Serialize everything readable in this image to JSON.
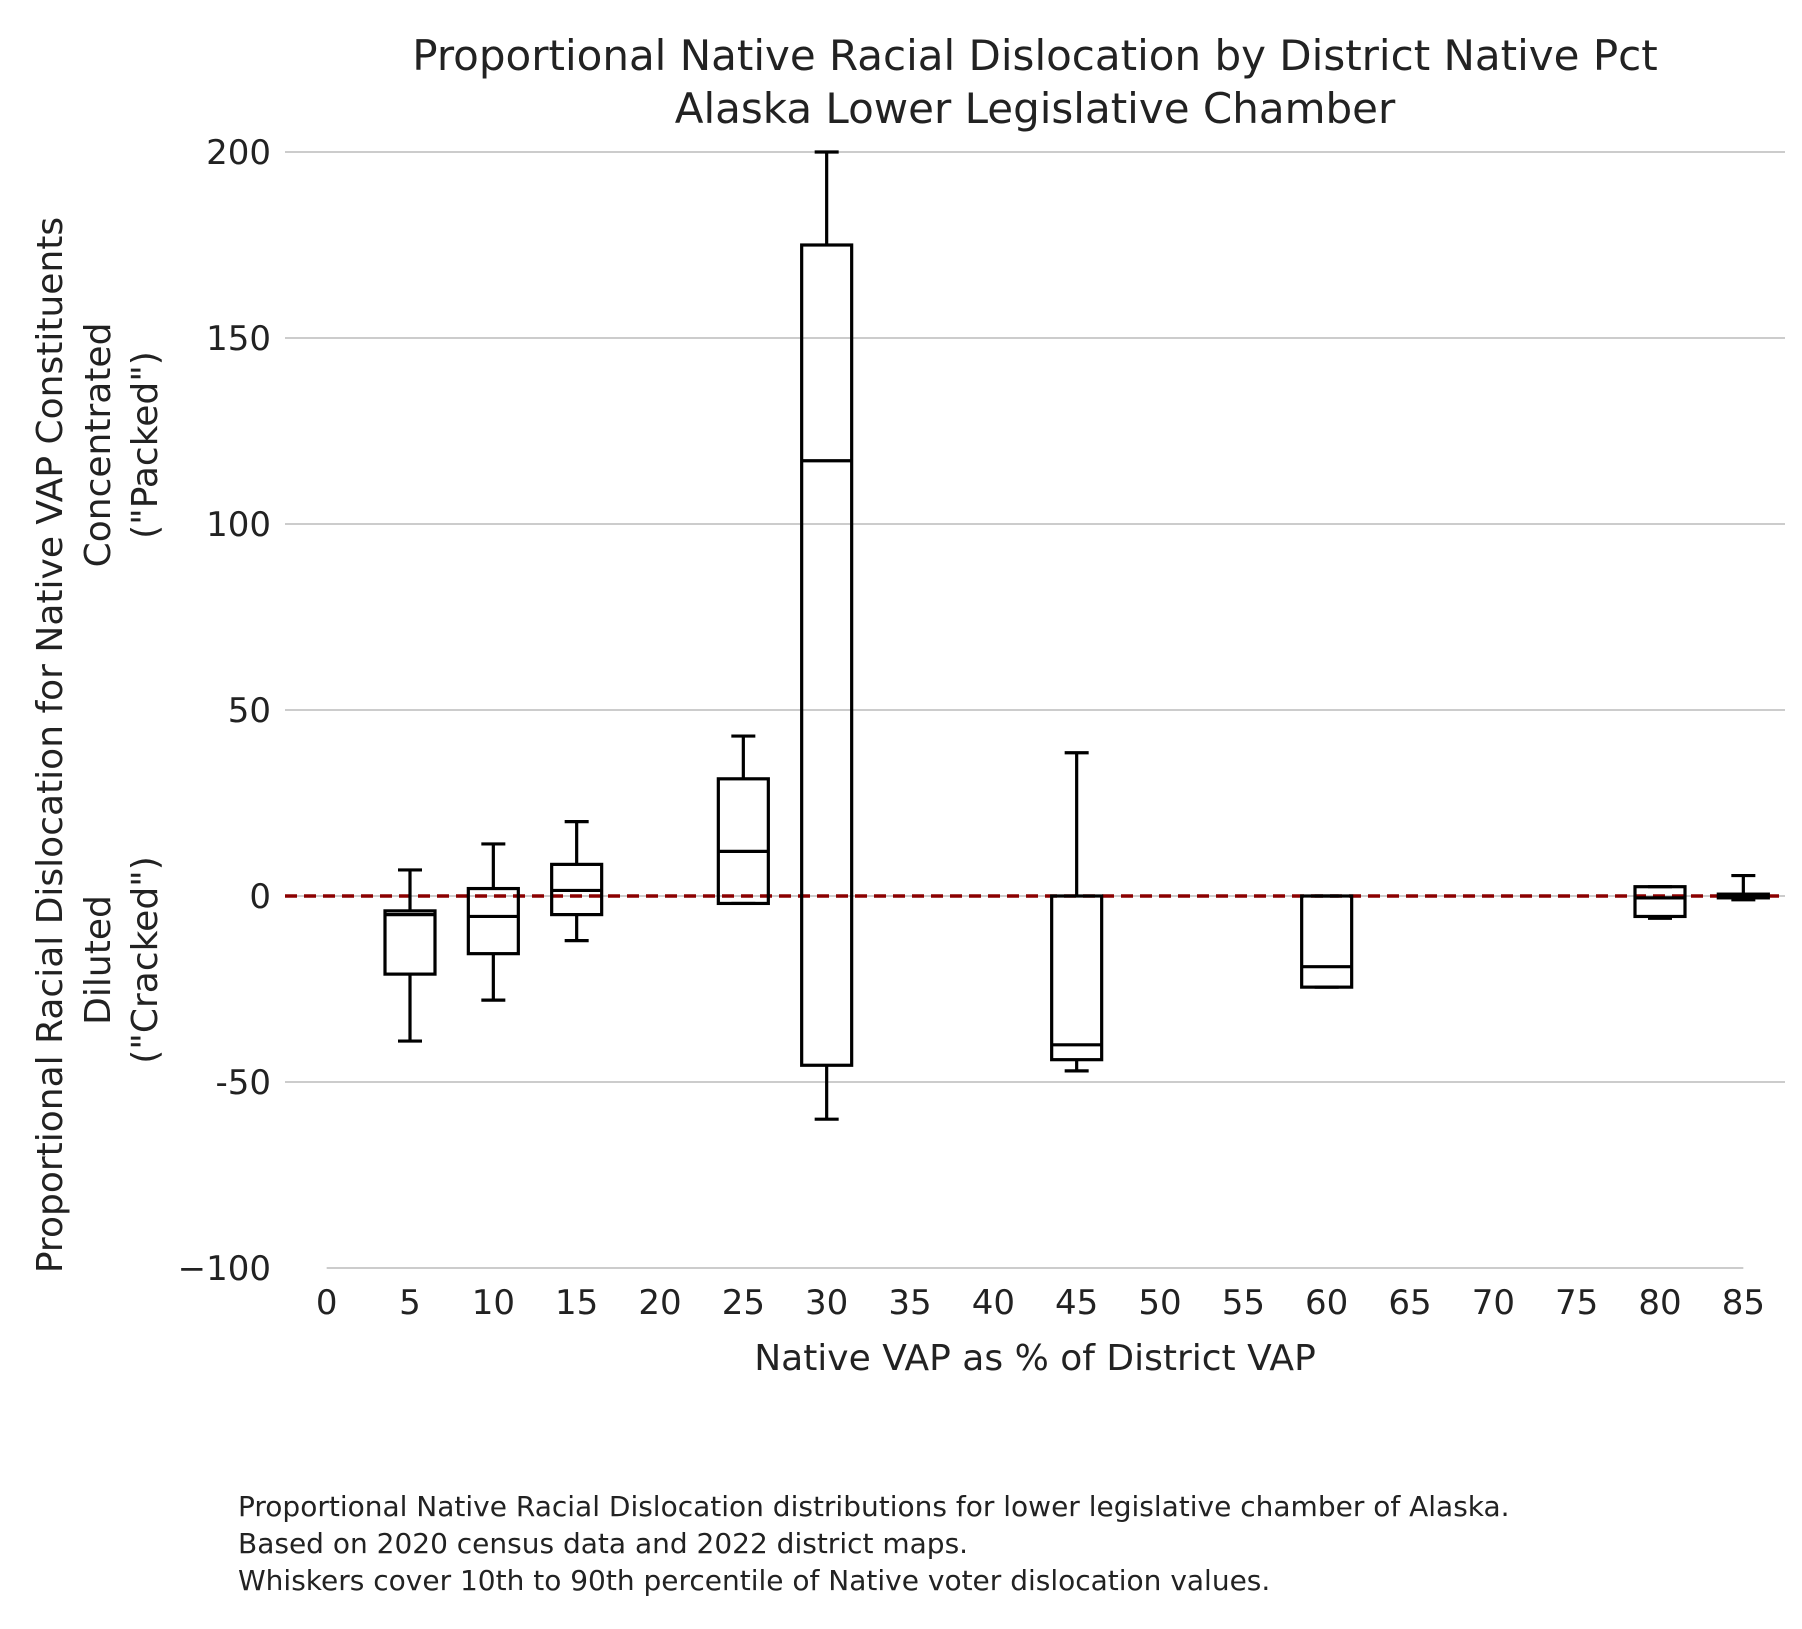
{
  "chart_data": {
    "type": "box",
    "title_lines": [
      "Proportional Native Racial Dislocation by District Native Pct",
      "Alaska Lower Legislative Chamber"
    ],
    "xlabel": "Native VAP as % of District VAP",
    "ylabel_lines": [
      "Proportional Racial Dislocation for Native VAP Constituents",
      "Concentrated",
      "(\"Packed\")",
      "Diluted",
      "(\"Cracked\")"
    ],
    "x_ticks": [
      0,
      5,
      10,
      15,
      20,
      25,
      30,
      35,
      40,
      45,
      50,
      55,
      60,
      65,
      70,
      75,
      80,
      85
    ],
    "y_ticks": [
      200,
      150,
      100,
      50,
      0,
      -50,
      -100
    ],
    "y_tick_labels": [
      "200",
      "150",
      "100",
      "50",
      "0",
      "-50",
      "−100"
    ],
    "xlim": [
      -2.5,
      87.5
    ],
    "ylim": [
      -100,
      200
    ],
    "grid": true,
    "reference_line": {
      "y": 0,
      "color": "#8b0000",
      "style": "dashed"
    },
    "boxes": [
      {
        "x": 5,
        "whislo": -39,
        "q1": -21,
        "med": -5,
        "q3": -4,
        "whishi": 7
      },
      {
        "x": 10,
        "whislo": -28,
        "q1": -15.5,
        "med": -5.5,
        "q3": 2,
        "whishi": 14
      },
      {
        "x": 15,
        "whislo": -12,
        "q1": -5,
        "med": 1.5,
        "q3": 8.5,
        "whishi": 20
      },
      {
        "x": 25,
        "whislo": -2,
        "q1": -2,
        "med": 12,
        "q3": 31.5,
        "whishi": 43
      },
      {
        "x": 30,
        "whislo": -60,
        "q1": -45.5,
        "med": 117,
        "q3": 175,
        "whishi": 200
      },
      {
        "x": 45,
        "whislo": -47,
        "q1": -44,
        "med": -40,
        "q3": 0,
        "whishi": 38.5
      },
      {
        "x": 60,
        "whislo": -24.5,
        "q1": -24.5,
        "med": -19,
        "q3": 0,
        "whishi": 0
      },
      {
        "x": 80,
        "whislo": -6,
        "q1": -5.5,
        "med": -0.5,
        "q3": 2.5,
        "whishi": 2.5
      },
      {
        "x": 85,
        "whislo": -1,
        "q1": -0.5,
        "med": 0,
        "q3": 0.5,
        "whishi": 5.5
      }
    ],
    "colors": {
      "box": "#000000",
      "grid": "#cccccc",
      "reference": "#8b0000"
    }
  },
  "caption": [
    "Proportional Native Racial Dislocation distributions for lower legislative chamber of Alaska.",
    "Based on 2020 census data and 2022 district maps.",
    "Whiskers cover 10th to 90th percentile of Native voter dislocation values."
  ]
}
